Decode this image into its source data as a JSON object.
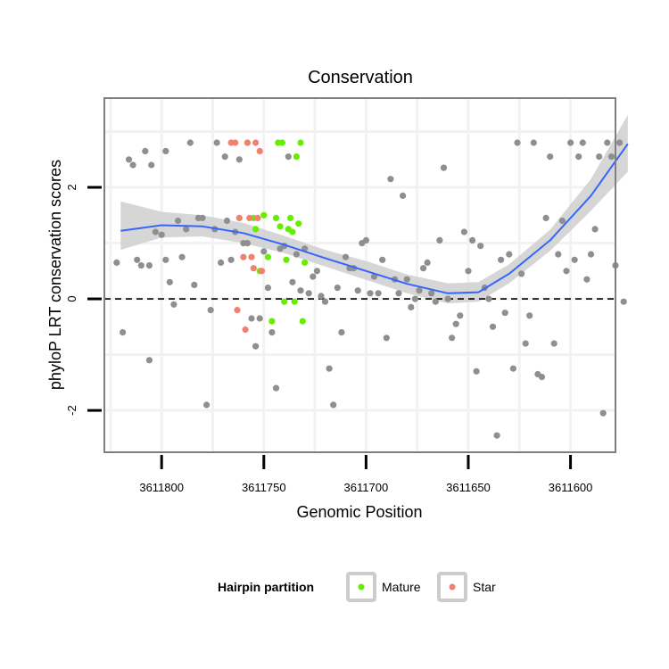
{
  "colors": {
    "other": "#8f8f8f",
    "mature": "#66ee00",
    "star": "#f08070",
    "smooth": "#3366ff",
    "ribbon": "#cfcfcf",
    "grid": "#f2f2f2",
    "panel_border": "#7f7f7f"
  },
  "chart_data": {
    "type": "scatter",
    "title": "Conservation",
    "xlabel": "Genomic Position",
    "ylabel": "phyloP LRT conservation scores",
    "x_reversed": true,
    "xlim": [
      3611578,
      3611828
    ],
    "ylim": [
      -2.75,
      3.6
    ],
    "x_ticks": [
      3611800,
      3611750,
      3611700,
      3611650,
      3611600
    ],
    "x_tick_labels": [
      "3611800",
      "3611750",
      "3611700",
      "3611650",
      "3611600"
    ],
    "y_ticks": [
      -2,
      0,
      2
    ],
    "y_tick_labels": [
      "-2",
      "0",
      "2"
    ],
    "reference_line": {
      "y": 0,
      "style": "dashed"
    },
    "legend": {
      "title": "Hairpin partition",
      "position": "bottom",
      "entries": [
        {
          "label": "Mature",
          "series": "Mature"
        },
        {
          "label": "Star",
          "series": "Star"
        }
      ]
    },
    "smooth": {
      "x": [
        3611820,
        3611800,
        3611780,
        3611760,
        3611740,
        3611720,
        3611700,
        3611680,
        3611660,
        3611645,
        3611630,
        3611610,
        3611590,
        3611572
      ],
      "y": [
        1.22,
        1.32,
        1.3,
        1.18,
        0.97,
        0.73,
        0.5,
        0.27,
        0.1,
        0.12,
        0.45,
        1.05,
        1.85,
        2.78
      ],
      "lo": [
        0.88,
        1.1,
        1.12,
        1.0,
        0.82,
        0.58,
        0.34,
        0.1,
        -0.08,
        -0.05,
        0.28,
        0.86,
        1.58,
        2.28
      ],
      "hi": [
        1.75,
        1.56,
        1.5,
        1.36,
        1.13,
        0.88,
        0.68,
        0.44,
        0.28,
        0.3,
        0.62,
        1.24,
        2.15,
        3.3
      ]
    },
    "series": [
      {
        "name": "Other",
        "x": [
          3611822,
          3611819,
          3611816,
          3611814,
          3611812,
          3611810,
          3611808,
          3611806,
          3611806,
          3611805,
          3611803,
          3611800,
          3611798,
          3611796,
          3611798,
          3611794,
          3611792,
          3611790,
          3611788,
          3611786,
          3611784,
          3611782,
          3611780,
          3611778,
          3611776,
          3611774,
          3611773,
          3611771,
          3611769,
          3611768,
          3611766,
          3611764,
          3611762,
          3611760,
          3611758,
          3611756,
          3611754,
          3611752,
          3611750,
          3611748,
          3611746,
          3611744,
          3611742,
          3611740,
          3611738,
          3611736,
          3611734,
          3611732,
          3611730,
          3611728,
          3611726,
          3611724,
          3611722,
          3611720,
          3611718,
          3611716,
          3611714,
          3611712,
          3611710,
          3611708,
          3611706,
          3611704,
          3611702,
          3611700,
          3611698,
          3611696,
          3611694,
          3611692,
          3611690,
          3611688,
          3611686,
          3611684,
          3611682,
          3611680,
          3611678,
          3611676,
          3611674,
          3611672,
          3611670,
          3611668,
          3611666,
          3611664,
          3611662,
          3611660,
          3611658,
          3611656,
          3611654,
          3611652,
          3611650,
          3611648,
          3611646,
          3611644,
          3611642,
          3611640,
          3611638,
          3611636,
          3611634,
          3611632,
          3611630,
          3611628,
          3611626,
          3611624,
          3611622,
          3611620,
          3611618,
          3611616,
          3611614,
          3611612,
          3611610,
          3611608,
          3611606,
          3611604,
          3611602,
          3611600,
          3611598,
          3611596,
          3611594,
          3611592,
          3611590,
          3611588,
          3611586,
          3611584,
          3611582,
          3611580,
          3611578,
          3611576,
          3611574
        ],
        "y": [
          0.65,
          -0.6,
          2.5,
          2.4,
          0.7,
          0.6,
          2.65,
          0.6,
          -1.1,
          2.4,
          1.2,
          1.15,
          0.7,
          0.3,
          2.65,
          -0.1,
          1.4,
          0.75,
          1.25,
          2.8,
          0.25,
          1.45,
          1.45,
          -1.9,
          -0.2,
          1.25,
          2.8,
          0.65,
          2.55,
          1.4,
          0.7,
          1.2,
          2.5,
          1.0,
          1.0,
          -0.35,
          -0.85,
          -0.35,
          0.85,
          0.2,
          -0.6,
          -1.6,
          0.9,
          0.95,
          2.55,
          0.3,
          0.8,
          0.15,
          0.9,
          0.1,
          0.4,
          0.5,
          0.05,
          -0.05,
          -1.25,
          -1.9,
          0.2,
          -0.6,
          0.75,
          0.55,
          0.55,
          0.15,
          1.0,
          1.05,
          0.1,
          0.4,
          0.1,
          0.7,
          -0.7,
          2.15,
          0.35,
          0.1,
          1.85,
          0.35,
          -0.15,
          0.0,
          0.15,
          0.55,
          0.65,
          0.1,
          -0.05,
          1.05,
          2.35,
          0.0,
          -0.7,
          -0.45,
          -0.3,
          1.2,
          0.5,
          1.05,
          -1.3,
          0.95,
          0.2,
          0.0,
          -0.5,
          -2.45,
          0.7,
          -0.25,
          0.8,
          -1.25,
          2.8,
          0.45,
          -0.8,
          -0.3,
          2.8,
          -1.35,
          -1.4,
          1.45,
          2.55,
          -0.8,
          0.8,
          1.4,
          0.5,
          2.8,
          0.7,
          2.55,
          2.8,
          0.35,
          0.8,
          1.25,
          2.55,
          -2.05,
          2.8,
          2.55,
          0.6,
          2.8,
          -0.05
        ]
      },
      {
        "name": "Mature",
        "x": [
          3611758,
          3611755,
          3611754,
          3611752,
          3611750,
          3611748,
          3611746,
          3611744,
          3611743,
          3611742,
          3611741,
          3611740,
          3611739,
          3611738,
          3611737,
          3611736,
          3611735,
          3611734,
          3611733,
          3611732,
          3611731,
          3611730
        ],
        "y": [
          2.8,
          1.45,
          1.25,
          0.5,
          1.5,
          0.75,
          -0.4,
          1.45,
          2.8,
          1.3,
          2.8,
          -0.05,
          0.7,
          1.25,
          1.45,
          1.2,
          -0.05,
          2.55,
          1.35,
          2.8,
          -0.4,
          0.65
        ]
      },
      {
        "name": "Star",
        "x": [
          3611766,
          3611764,
          3611763,
          3611762,
          3611760,
          3611759,
          3611758,
          3611757,
          3611756,
          3611755,
          3611754,
          3611753,
          3611752,
          3611751
        ],
        "y": [
          2.8,
          2.8,
          -0.2,
          1.45,
          0.75,
          -0.55,
          2.8,
          1.45,
          0.75,
          0.55,
          2.8,
          1.45,
          2.65,
          0.5
        ]
      }
    ]
  }
}
